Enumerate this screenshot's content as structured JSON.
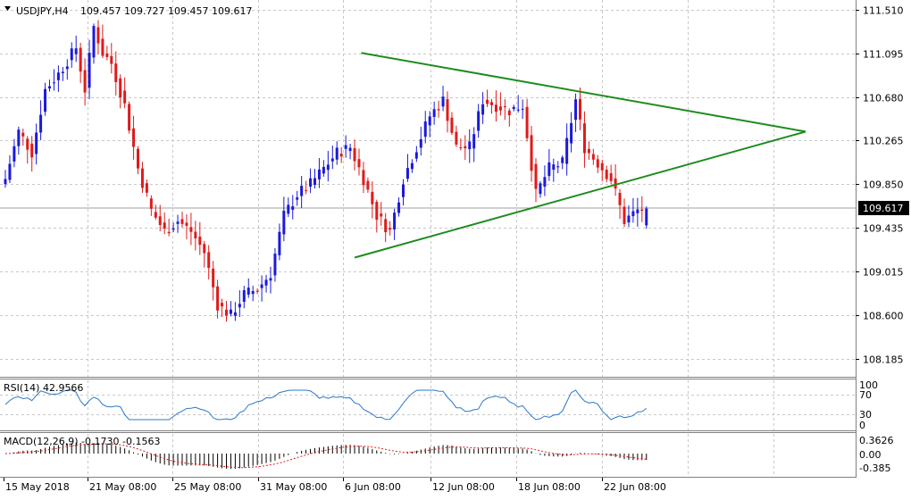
{
  "header": {
    "symbol": "USDJPY,H4",
    "ohlc": "109.457 109.727 109.457 109.617"
  },
  "colors": {
    "bull": "#1a1adb",
    "bear": "#e01a1a",
    "trendline": "#1e8c1e",
    "grid": "#c8c8c8",
    "rsi": "#2a78c8",
    "macd_signal": "#e01a1a",
    "current_price_label_bg": "#000000"
  },
  "price_scale": {
    "ticks": [
      "111.510",
      "111.095",
      "110.680",
      "110.265",
      "109.850",
      "109.435",
      "109.015",
      "108.600",
      "108.185"
    ],
    "current": "109.617"
  },
  "time_scale": {
    "ticks": [
      "15 May 2018",
      "21 May 08:00",
      "25 May 08:00",
      "31 May 08:00",
      "6 Jun 08:00",
      "12 Jun 08:00",
      "18 Jun 08:00",
      "22 Jun 08:00"
    ]
  },
  "rsi": {
    "label": "RSI(14) 42.9566",
    "levels": [
      "100",
      "70",
      "30",
      "0"
    ]
  },
  "macd": {
    "label": "MACD(12,26,9) -0.1730 -0.1563",
    "levels": [
      "0.3626",
      "0.00",
      "-0.385"
    ]
  },
  "chart_data": {
    "type": "candlestick",
    "symbol": "USDJPY",
    "timeframe": "H4",
    "ylim": [
      108.0,
      111.6
    ],
    "anchors": [
      {
        "i": 0,
        "p": 109.9
      },
      {
        "i": 3,
        "p": 110.35
      },
      {
        "i": 6,
        "p": 110.15
      },
      {
        "i": 9,
        "p": 110.75
      },
      {
        "i": 12,
        "p": 110.9
      },
      {
        "i": 16,
        "p": 111.15
      },
      {
        "i": 18,
        "p": 110.75
      },
      {
        "i": 20,
        "p": 111.35
      },
      {
        "i": 22,
        "p": 111.1
      },
      {
        "i": 24,
        "p": 111.0
      },
      {
        "i": 27,
        "p": 110.6
      },
      {
        "i": 30,
        "p": 110.0
      },
      {
        "i": 33,
        "p": 109.6
      },
      {
        "i": 36,
        "p": 109.4
      },
      {
        "i": 39,
        "p": 109.5
      },
      {
        "i": 42,
        "p": 109.4
      },
      {
        "i": 45,
        "p": 109.2
      },
      {
        "i": 48,
        "p": 108.7
      },
      {
        "i": 51,
        "p": 108.6
      },
      {
        "i": 54,
        "p": 108.8
      },
      {
        "i": 57,
        "p": 108.85
      },
      {
        "i": 60,
        "p": 109.0
      },
      {
        "i": 63,
        "p": 109.55
      },
      {
        "i": 66,
        "p": 109.75
      },
      {
        "i": 69,
        "p": 109.85
      },
      {
        "i": 72,
        "p": 110.0
      },
      {
        "i": 75,
        "p": 110.15
      },
      {
        "i": 78,
        "p": 110.2
      },
      {
        "i": 81,
        "p": 109.9
      },
      {
        "i": 84,
        "p": 109.55
      },
      {
        "i": 87,
        "p": 109.4
      },
      {
        "i": 90,
        "p": 109.9
      },
      {
        "i": 93,
        "p": 110.2
      },
      {
        "i": 96,
        "p": 110.5
      },
      {
        "i": 99,
        "p": 110.65
      },
      {
        "i": 102,
        "p": 110.2
      },
      {
        "i": 105,
        "p": 110.2
      },
      {
        "i": 108,
        "p": 110.65
      },
      {
        "i": 111,
        "p": 110.6
      },
      {
        "i": 114,
        "p": 110.55
      },
      {
        "i": 117,
        "p": 110.6
      },
      {
        "i": 120,
        "p": 109.75
      },
      {
        "i": 123,
        "p": 110.0
      },
      {
        "i": 126,
        "p": 110.05
      },
      {
        "i": 129,
        "p": 110.65
      },
      {
        "i": 131,
        "p": 110.2
      },
      {
        "i": 134,
        "p": 110.05
      },
      {
        "i": 137,
        "p": 109.9
      },
      {
        "i": 140,
        "p": 109.5
      },
      {
        "i": 143,
        "p": 109.6
      },
      {
        "i": 145,
        "p": 109.617
      }
    ],
    "trendlines": [
      {
        "name": "upper",
        "from": {
          "i": 80.5,
          "p": 111.1
        },
        "to": {
          "i": 181,
          "p": 110.35
        }
      },
      {
        "name": "lower",
        "from": {
          "i": 79,
          "p": 109.15
        },
        "to": {
          "i": 181,
          "p": 110.35
        }
      }
    ],
    "rsi_value": 42.9566,
    "macd_main": -0.173,
    "macd_signal": -0.1563
  }
}
